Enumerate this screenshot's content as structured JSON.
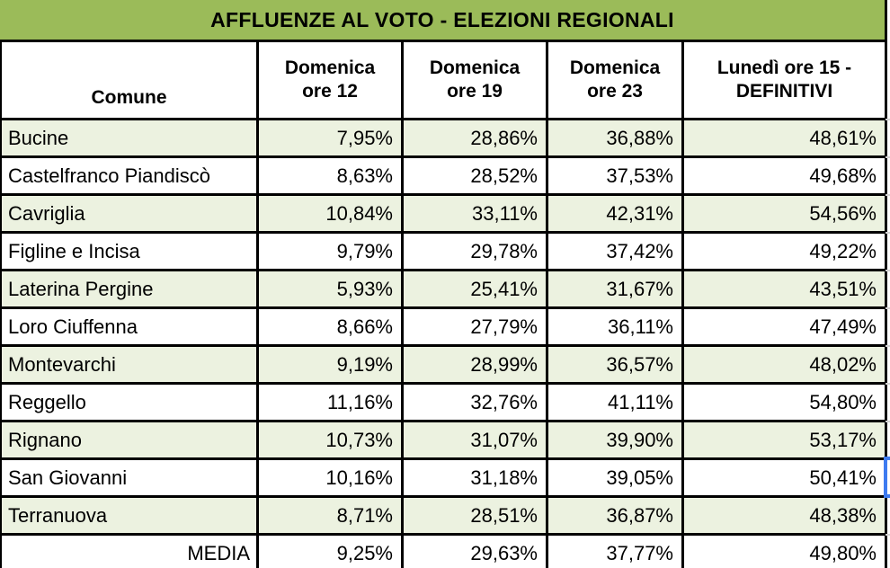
{
  "title": "AFFLUENZE AL VOTO - ELEZIONI REGIONALI",
  "table": {
    "columns": [
      "Comune",
      "Domenica\nore 12",
      "Domenica\nore 19",
      "Domenica\nore 23",
      "Lunedì ore 15 -\nDEFINITIVI"
    ],
    "rows": [
      {
        "comune": "Bucine",
        "values": [
          "7,95%",
          "28,86%",
          "36,88%",
          "48,61%"
        ]
      },
      {
        "comune": "Castelfranco Piandiscò",
        "values": [
          "8,63%",
          "28,52%",
          "37,53%",
          "49,68%"
        ]
      },
      {
        "comune": "Cavriglia",
        "values": [
          "10,84%",
          "33,11%",
          "42,31%",
          "54,56%"
        ]
      },
      {
        "comune": "Figline e Incisa",
        "values": [
          "9,79%",
          "29,78%",
          "37,42%",
          "49,22%"
        ]
      },
      {
        "comune": "Laterina Pergine",
        "values": [
          "5,93%",
          "25,41%",
          "31,67%",
          "43,51%"
        ]
      },
      {
        "comune": "Loro Ciuffenna",
        "values": [
          "8,66%",
          "27,79%",
          "36,11%",
          "47,49%"
        ]
      },
      {
        "comune": "Montevarchi",
        "values": [
          "9,19%",
          "28,99%",
          "36,57%",
          "48,02%"
        ]
      },
      {
        "comune": "Reggello",
        "values": [
          "11,16%",
          "32,76%",
          "41,11%",
          "54,80%"
        ]
      },
      {
        "comune": "Rignano",
        "values": [
          "10,73%",
          "31,07%",
          "39,90%",
          "53,17%"
        ]
      },
      {
        "comune": "San Giovanni",
        "values": [
          "10,16%",
          "31,18%",
          "39,05%",
          "50,41%"
        ]
      },
      {
        "comune": "Terranuova",
        "values": [
          "8,71%",
          "28,51%",
          "36,87%",
          "48,38%"
        ]
      }
    ],
    "footer": {
      "label": "MEDIA",
      "values": [
        "9,25%",
        "29,63%",
        "37,77%",
        "49,80%"
      ]
    }
  },
  "selection": {
    "selected_row": "San Giovanni",
    "color": "#3d7bf0"
  },
  "colors": {
    "title_bg": "#9bbb59",
    "row_alt_bg": "#ecf2e0",
    "border": "#000000",
    "gridline": "#d4d4d4"
  }
}
